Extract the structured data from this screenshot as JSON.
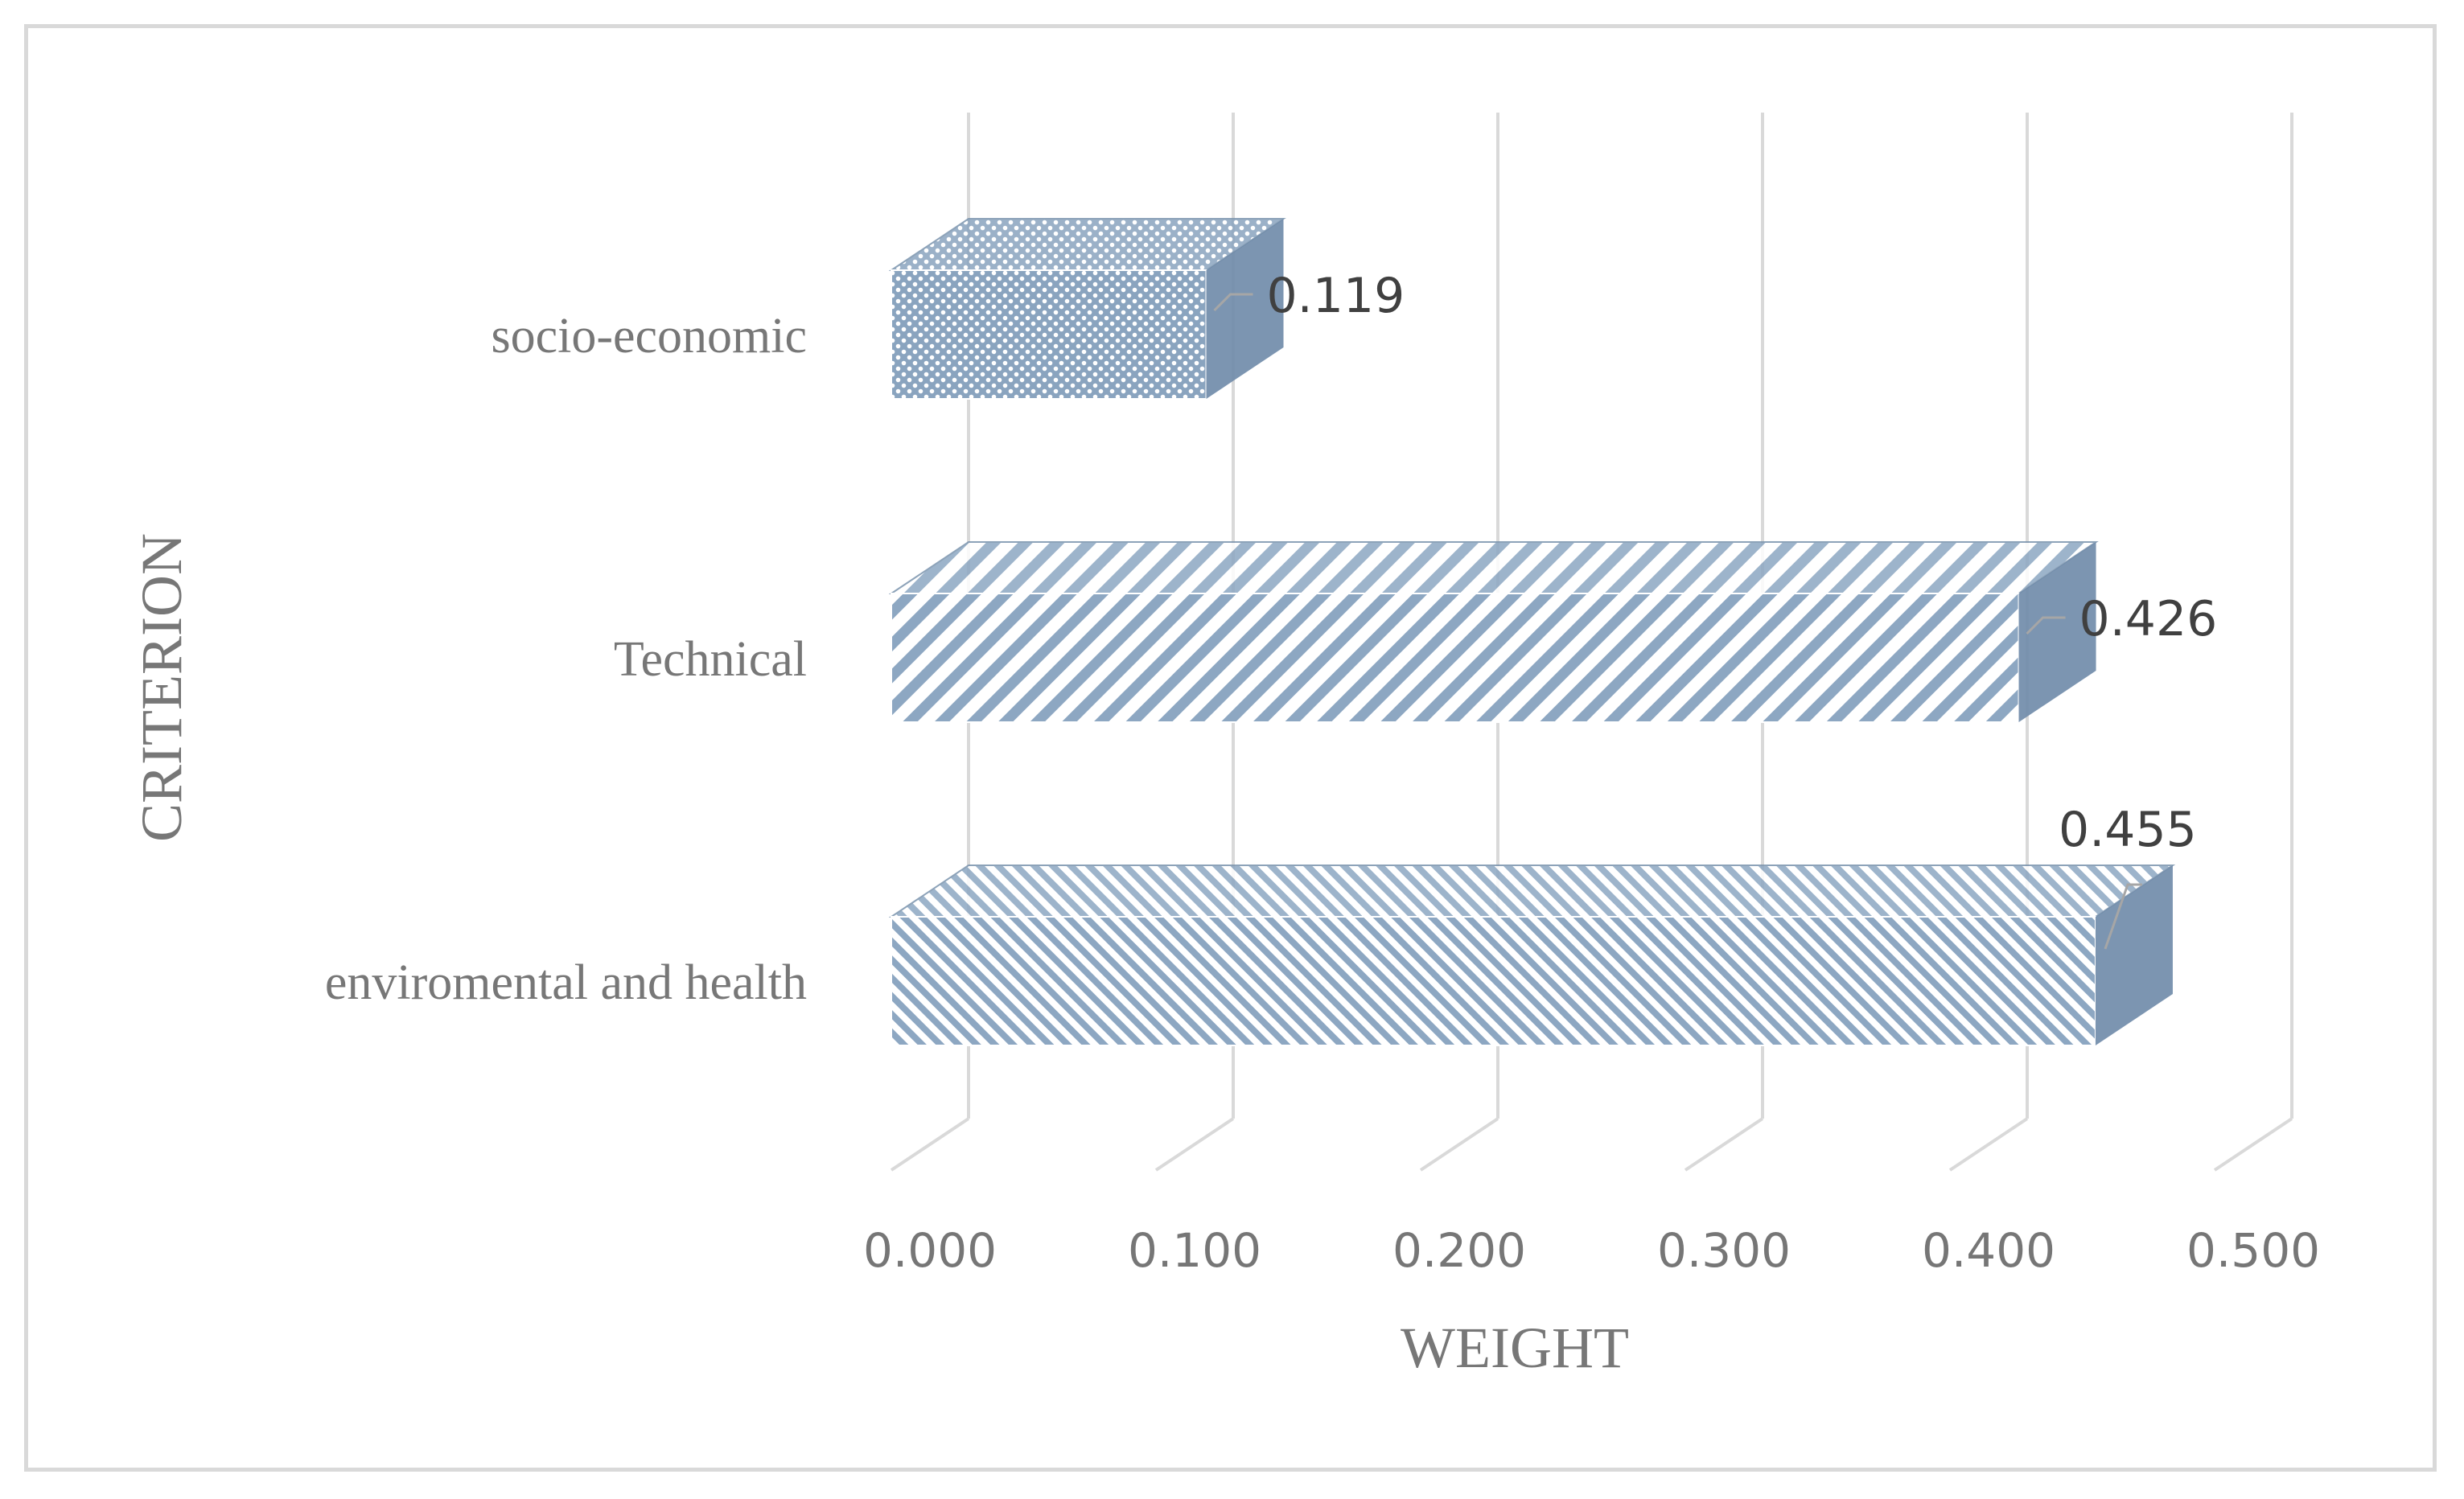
{
  "chart_data": {
    "type": "bar",
    "orientation": "horizontal",
    "style": "3d",
    "categories": [
      "enviromental and health",
      "Technical",
      "socio-economic"
    ],
    "values": [
      0.455,
      0.426,
      0.119
    ],
    "data_labels": [
      "0.455",
      "0.426",
      "0.119"
    ],
    "xlabel": "WEIGHT",
    "ylabel": "CRITERION",
    "xlim": [
      0,
      0.5
    ],
    "x_ticks": [
      "0.000",
      "0.100",
      "0.200",
      "0.300",
      "0.400",
      "0.500"
    ],
    "grid": true,
    "legend": "none",
    "colors": {
      "bar": "#8da7c2",
      "bar_dark": "#6e8aa8",
      "grid": "#d9d9d9",
      "text": "#777777"
    }
  }
}
